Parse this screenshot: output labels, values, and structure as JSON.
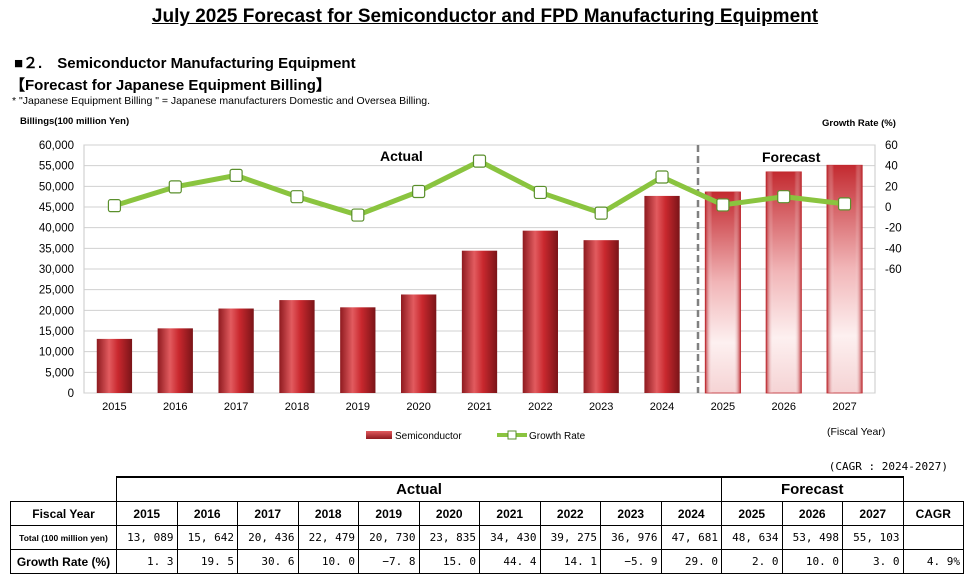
{
  "page": {
    "title": "July 2025 Forecast for Semiconductor and FPD Manufacturing Equipment",
    "section": "■２.　Semiconductor Manufacturing Equipment",
    "subtitle": "【Forecast for Japanese Equipment Billing】",
    "note": "* \"Japanese Equipment Billing \" = Japanese manufacturers Domestic and Oversea Billing."
  },
  "chart_data": {
    "type": "bar",
    "categories": [
      "2015",
      "2016",
      "2017",
      "2018",
      "2019",
      "2020",
      "2021",
      "2022",
      "2023",
      "2024",
      "2025",
      "2026",
      "2027"
    ],
    "series": [
      {
        "name": "Semiconductor",
        "type": "bar",
        "axis": "left",
        "values": [
          13089,
          15642,
          20436,
          22479,
          20730,
          23835,
          34430,
          39275,
          36976,
          47681,
          48634,
          53498,
          55103
        ],
        "color": "#c0272d"
      },
      {
        "name": "Growth Rate",
        "type": "line",
        "axis": "right",
        "values": [
          1.3,
          19.5,
          30.6,
          10.0,
          -7.8,
          15.0,
          44.4,
          14.1,
          -5.9,
          29.0,
          2.0,
          10.0,
          3.0
        ],
        "color": "#8ac43f"
      }
    ],
    "ylabel_left": "Billings(100 million Yen)",
    "ylabel_right": "Growth Rate (%)",
    "xlabel": "(Fiscal Year)",
    "ylim_left": [
      0,
      60000
    ],
    "yticks_left": [
      "0",
      "5,000",
      "10,000",
      "15,000",
      "20,000",
      "25,000",
      "30,000",
      "35,000",
      "40,000",
      "45,000",
      "50,000",
      "55,000",
      "60,000"
    ],
    "yticks_right": [
      "60",
      "40",
      "20",
      "0",
      "-20",
      "-40",
      "-60"
    ],
    "ylim_right": [
      -180,
      60
    ],
    "forecast_from_index": 10,
    "annotations": {
      "actual": "Actual",
      "forecast": "Forecast"
    },
    "legend_position": "bottom"
  },
  "table": {
    "cagr_note": "(CAGR : 2024-2027)",
    "group_actual": "Actual",
    "group_forecast": "Forecast",
    "header_label": "Fiscal Year",
    "years": [
      "2015",
      "2016",
      "2017",
      "2018",
      "2019",
      "2020",
      "2021",
      "2022",
      "2023",
      "2024",
      "2025",
      "2026",
      "2027"
    ],
    "cagr_header": "CAGR",
    "total_label": "Total (100 million yen)",
    "totals": [
      "13, 089",
      "15, 642",
      "20, 436",
      "22, 479",
      "20, 730",
      "23, 835",
      "34, 430",
      "39, 275",
      "36, 976",
      "47, 681",
      "48, 634",
      "53, 498",
      "55, 103"
    ],
    "total_cagr": "",
    "growth_label": "Growth Rate (%)",
    "growth": [
      "1. 3",
      "19. 5",
      "30. 6",
      "10. 0",
      "−7. 8",
      "15. 0",
      "44. 4",
      "14. 1",
      "−5. 9",
      "29. 0",
      "2. 0",
      "10. 0",
      "3. 0"
    ],
    "growth_cagr": "4. 9%"
  }
}
